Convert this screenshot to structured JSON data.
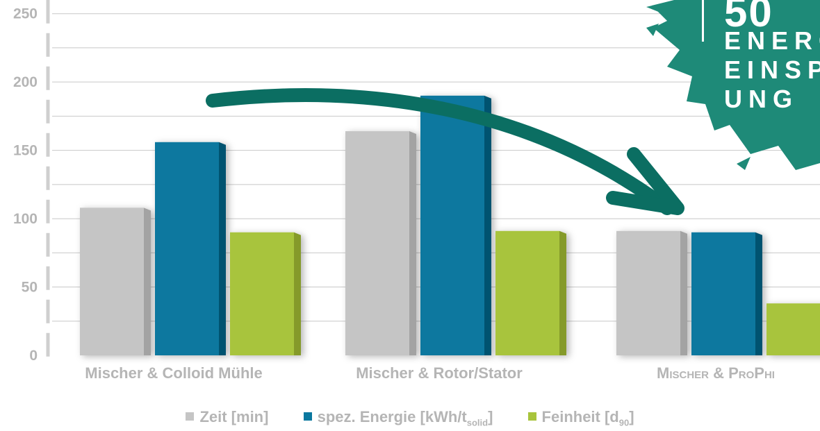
{
  "chart_data": {
    "type": "bar",
    "categories": [
      "Mischer & Colloid Mühle",
      "Mischer & Rotor/Stator",
      "Mischer & ProPhi"
    ],
    "series": [
      {
        "name": "Zeit [min]",
        "values": [
          108,
          164,
          91
        ],
        "color": "#c5c5c5",
        "side_color": "#a3a3a3"
      },
      {
        "name": "spez. Energie  [kWh/t",
        "sub": "solid",
        "suffix": "]",
        "values": [
          156,
          190,
          90
        ],
        "color": "#0a789f",
        "side_color": "#06536f"
      },
      {
        "name": "Feinheit [d",
        "sub": "90",
        "suffix": "]",
        "values": [
          90,
          91,
          38
        ],
        "color": "#a8c43c",
        "side_color": "#859a2c"
      }
    ],
    "yticks": [
      0,
      50,
      100,
      150,
      200,
      250
    ],
    "ylim": [
      0,
      260
    ],
    "grid": true,
    "legend_position": "bottom",
    "annotation": {
      "shape": "curved-arrow",
      "color": "#0b6e62",
      "from_category": 0,
      "to_category": 2
    }
  },
  "badge": {
    "lines": [
      "50",
      "ENERG",
      "EINSP",
      "UNG"
    ],
    "color": "#1e8a78"
  }
}
